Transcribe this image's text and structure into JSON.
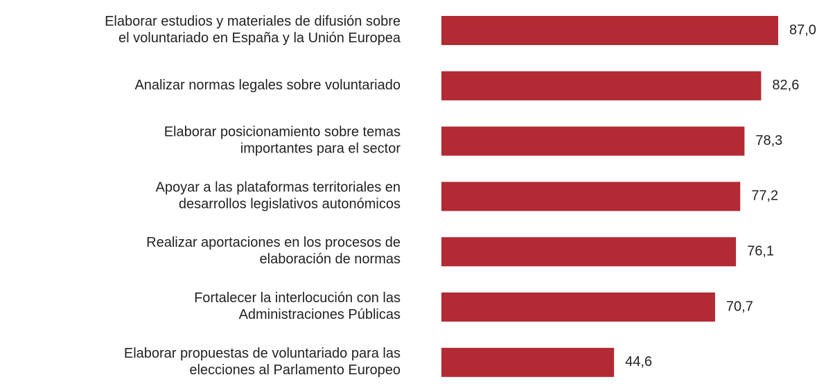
{
  "chart_data": {
    "type": "bar",
    "orientation": "horizontal",
    "categories": [
      "Elaborar estudios y materiales de difusión sobre\nel voluntariado en España y la Unión Europea",
      "Analizar normas legales sobre voluntariado",
      "Elaborar posicionamiento sobre temas\nimportantes para el sector",
      "Apoyar a las plataformas territoriales en\ndesarrollos legislativos autonómicos",
      "Realizar aportaciones en los procesos de\nelaboración de normas",
      "Fortalecer la interlocución con las\nAdministraciones Públicas",
      "Elaborar propuestas de voluntariado para las\nelecciones al Parlamento Europeo"
    ],
    "values": [
      87.0,
      82.6,
      78.3,
      77.2,
      76.1,
      70.7,
      44.6
    ],
    "value_labels": [
      "87,0",
      "82,6",
      "78,3",
      "77,2",
      "76,1",
      "70,7",
      "44,6"
    ],
    "color": "#b22a33"
  }
}
